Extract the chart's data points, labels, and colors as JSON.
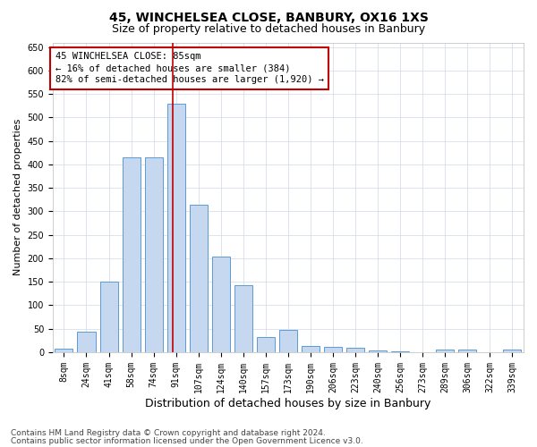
{
  "title1": "45, WINCHELSEA CLOSE, BANBURY, OX16 1XS",
  "title2": "Size of property relative to detached houses in Banbury",
  "xlabel": "Distribution of detached houses by size in Banbury",
  "ylabel": "Number of detached properties",
  "categories": [
    "8sqm",
    "24sqm",
    "41sqm",
    "58sqm",
    "74sqm",
    "91sqm",
    "107sqm",
    "124sqm",
    "140sqm",
    "157sqm",
    "173sqm",
    "190sqm",
    "206sqm",
    "223sqm",
    "240sqm",
    "256sqm",
    "273sqm",
    "289sqm",
    "306sqm",
    "322sqm",
    "339sqm"
  ],
  "values": [
    7,
    44,
    150,
    416,
    415,
    530,
    315,
    203,
    142,
    33,
    48,
    14,
    12,
    9,
    4,
    2,
    0,
    5,
    5,
    0,
    6
  ],
  "bar_color": "#c5d8f0",
  "bar_edge_color": "#5b9bd5",
  "bar_width": 0.8,
  "vline_x": 4.87,
  "vline_color": "#c00000",
  "annotation_line1": "45 WINCHELSEA CLOSE: 85sqm",
  "annotation_line2": "← 16% of detached houses are smaller (384)",
  "annotation_line3": "82% of semi-detached houses are larger (1,920) →",
  "annotation_box_color": "#ffffff",
  "annotation_box_edge_color": "#c00000",
  "ylim": [
    0,
    660
  ],
  "yticks": [
    0,
    50,
    100,
    150,
    200,
    250,
    300,
    350,
    400,
    450,
    500,
    550,
    600,
    650
  ],
  "footer1": "Contains HM Land Registry data © Crown copyright and database right 2024.",
  "footer2": "Contains public sector information licensed under the Open Government Licence v3.0.",
  "bg_color": "#ffffff",
  "grid_color": "#d0d8e8",
  "title1_fontsize": 10,
  "title2_fontsize": 9,
  "xlabel_fontsize": 9,
  "ylabel_fontsize": 8,
  "tick_fontsize": 7,
  "annotation_fontsize": 7.5,
  "footer_fontsize": 6.5
}
